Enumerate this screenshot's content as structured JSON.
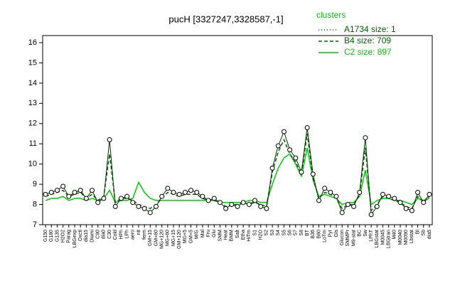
{
  "chart_data": {
    "type": "line",
    "title": "pucH [3327247,3328587,-1]",
    "legend_title": "clusters",
    "categories": [
      "G150",
      "G180",
      "G135",
      "H2O2",
      "Parag",
      "LBGexp",
      "Oxctl",
      "dia15",
      "Diami",
      "C90",
      "dia0",
      "C30",
      "Cold",
      "HPh",
      "LPh",
      "aero",
      "nit",
      "ferm",
      "GM+15",
      "GM+60",
      "MG+120",
      "MG+60",
      "MG+15",
      "GM+120",
      "MG+5",
      "GM+5",
      "M/G",
      "Mal",
      "Fru",
      "Glu",
      "SMM",
      "Heat",
      "BMM",
      "Salt",
      "Etha",
      "HiTm",
      "S1",
      "H2O",
      "S2",
      "S3",
      "S4",
      "S5",
      "S6",
      "S7",
      "S8",
      "BT",
      "B36",
      "B60",
      "LoTm",
      "Pyr",
      "Gls",
      "Glucon",
      "SMMPr",
      "M9-stat",
      "BC",
      "Sw",
      "LPhT",
      "LBGstat",
      "M0045",
      "LBGtran",
      "M40",
      "M0040",
      "M0090",
      "Lbstat",
      "Bl",
      "Sb",
      "dia5"
    ],
    "series": [
      {
        "name": "A1734 size: 1",
        "color": "#006400",
        "line_style": "dotted",
        "points": true,
        "values": [
          8.5,
          8.6,
          8.7,
          8.9,
          8.4,
          8.6,
          8.7,
          8.3,
          8.7,
          8.1,
          8.3,
          11.2,
          7.9,
          8.3,
          8.4,
          8.1,
          7.9,
          7.8,
          7.6,
          7.9,
          8.4,
          8.8,
          8.6,
          8.5,
          8.6,
          8.7,
          8.6,
          8.4,
          8.2,
          8.3,
          8.1,
          7.8,
          8.0,
          7.9,
          8.1,
          8.0,
          8.2,
          7.9,
          7.8,
          9.8,
          10.9,
          11.6,
          10.7,
          10.3,
          9.6,
          11.8,
          9.5,
          8.2,
          8.8,
          8.6,
          8.4,
          7.6,
          8.0,
          7.9,
          8.6,
          11.3,
          7.5,
          7.9,
          8.5,
          8.4,
          8.3,
          8.1,
          7.8,
          7.7,
          8.6,
          8.1,
          8.5
        ]
      },
      {
        "name": "B4 size: 709",
        "color": "#006400",
        "line_style": "dashed",
        "points": false,
        "values": [
          8.4,
          8.5,
          8.6,
          8.7,
          8.4,
          8.5,
          8.6,
          8.3,
          8.5,
          8.2,
          8.4,
          10.5,
          8.1,
          8.3,
          8.3,
          8.2,
          8.0,
          7.9,
          7.8,
          8.0,
          8.3,
          8.6,
          8.5,
          8.4,
          8.5,
          8.5,
          8.5,
          8.3,
          8.2,
          8.2,
          8.1,
          7.9,
          8.0,
          8.0,
          8.1,
          8.0,
          8.1,
          8.0,
          7.9,
          9.6,
          10.6,
          11.2,
          10.5,
          10.1,
          9.5,
          11.5,
          9.3,
          8.3,
          8.6,
          8.5,
          8.3,
          7.8,
          8.0,
          8.0,
          8.5,
          10.8,
          7.7,
          8.0,
          8.4,
          8.3,
          8.2,
          8.1,
          7.9,
          7.8,
          8.4,
          8.1,
          8.4
        ]
      },
      {
        "name": "C2 size: 897",
        "color": "#00cc00",
        "line_style": "solid",
        "points": false,
        "values": [
          8.2,
          8.3,
          8.3,
          8.4,
          8.2,
          8.3,
          8.3,
          8.2,
          8.3,
          8.2,
          8.3,
          8.7,
          8.1,
          8.2,
          8.2,
          8.3,
          9.1,
          8.6,
          8.3,
          8.2,
          8.2,
          8.2,
          8.2,
          8.2,
          8.2,
          8.2,
          8.2,
          8.2,
          8.2,
          8.2,
          8.1,
          8.1,
          8.1,
          8.1,
          8.1,
          8.2,
          8.2,
          8.1,
          8.1,
          9.0,
          9.8,
          10.3,
          10.5,
          10.0,
          9.4,
          10.8,
          9.2,
          8.4,
          8.5,
          8.4,
          8.3,
          8.0,
          8.1,
          8.1,
          8.4,
          9.7,
          8.0,
          8.2,
          8.3,
          8.3,
          8.2,
          8.2,
          8.1,
          8.0,
          8.3,
          8.2,
          8.3
        ]
      }
    ],
    "ylim": [
      7,
      16
    ],
    "yticks": [
      7,
      8,
      9,
      10,
      11,
      12,
      13,
      14,
      15,
      16
    ],
    "grid": false
  }
}
